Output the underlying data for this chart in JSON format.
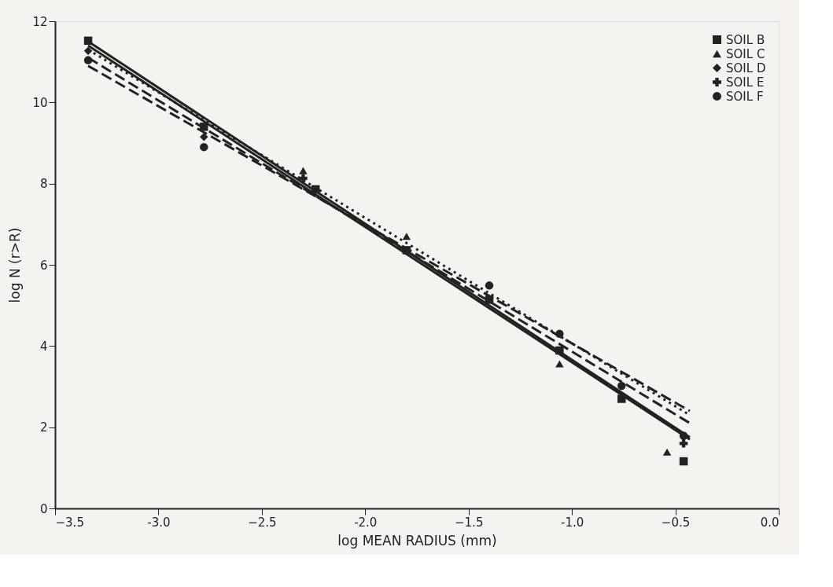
{
  "chart_data": {
    "type": "scatter",
    "xlabel": "log MEAN RADIUS (mm)",
    "ylabel": "log N  (r>R)",
    "xlim": [
      -3.5,
      0.0
    ],
    "ylim": [
      0,
      12
    ],
    "xticks": [
      -3.5,
      {
        "value": -3,
        "label": "-3.0"
      },
      -2.5,
      {
        "value": -2,
        "label": "-2.0"
      },
      -1.5,
      {
        "value": -1,
        "label": "-1.0"
      },
      -0.5,
      {
        "value": 0,
        "label": "0.0"
      }
    ],
    "yticks": [
      0,
      2,
      4,
      6,
      8,
      10,
      12
    ],
    "grid": false,
    "legend": "top right",
    "series": [
      {
        "name": "SOIL B",
        "marker": "square",
        "color": "#222222",
        "x": [
          -3.34,
          -2.78,
          -2.24,
          -1.8,
          -1.4,
          -1.06,
          -0.76,
          -0.46
        ],
        "values": [
          11.52,
          9.4,
          7.86,
          6.36,
          5.14,
          3.89,
          2.7,
          1.16
        ]
      },
      {
        "name": "SOIL C",
        "marker": "triangle",
        "color": "#222222",
        "x": [
          -2.3,
          -1.8,
          -1.06,
          -0.54
        ],
        "values": [
          8.32,
          6.7,
          3.56,
          1.39
        ]
      },
      {
        "name": "SOIL D",
        "marker": "diamond",
        "color": "#222222",
        "x": [
          -3.34,
          -2.78
        ],
        "values": [
          11.27,
          9.15
        ]
      },
      {
        "name": "SOIL E",
        "marker": "cross",
        "color": "#222222",
        "x": [
          -2.3,
          -0.46
        ],
        "values": [
          8.13,
          1.6
        ]
      },
      {
        "name": "SOIL F",
        "marker": "circle",
        "color": "#222222",
        "x": [
          -3.34,
          -2.78,
          -1.4,
          -1.06,
          -0.76,
          -0.46
        ],
        "values": [
          11.04,
          8.9,
          5.49,
          4.3,
          3.02,
          1.79
        ]
      },
      {
        "type": "line",
        "line_style": "solid",
        "color": "#222222",
        "x": [
          -3.34,
          -0.43
        ],
        "values": [
          11.5,
          1.75
        ]
      },
      {
        "type": "line",
        "line_style": "dashed",
        "color": "#222222",
        "x": [
          -3.34,
          -0.43
        ],
        "values": [
          11.1,
          2.1
        ]
      },
      {
        "type": "line",
        "line_style": "dotted",
        "color": "#222222",
        "x": [
          -3.34,
          -0.43
        ],
        "values": [
          11.3,
          2.3
        ]
      },
      {
        "type": "line",
        "line_style": "solid",
        "color": "#222222",
        "x": [
          -3.34,
          -0.43
        ],
        "values": [
          11.4,
          1.7
        ]
      },
      {
        "type": "line",
        "line_style": "dashed",
        "color": "#222222",
        "x": [
          -3.34,
          -0.43
        ],
        "values": [
          10.9,
          2.4
        ]
      }
    ]
  }
}
